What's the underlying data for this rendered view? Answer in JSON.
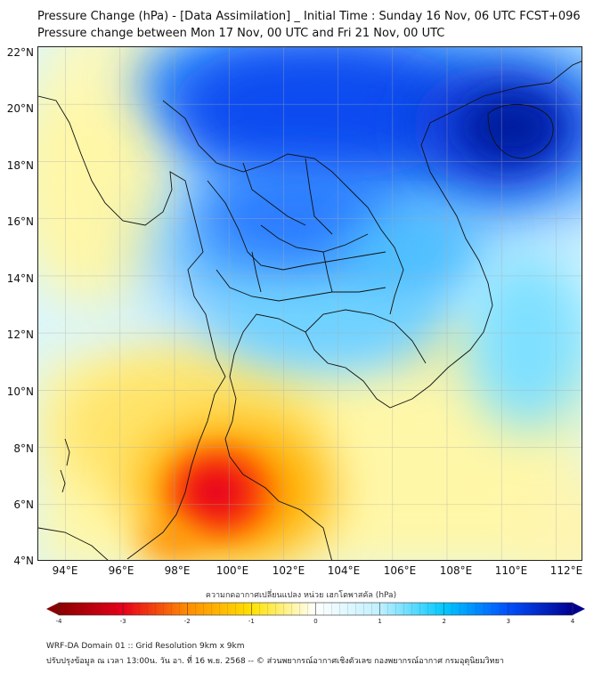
{
  "title": {
    "line1": "Pressure Change (hPa) - [Data Assimilation] _ Initial Time : Sunday 16 Nov, 06 UTC FCST+096",
    "line2": "Pressure change between Mon 17 Nov, 00 UTC and Fri 21 Nov, 00 UTC"
  },
  "map": {
    "lat_range": [
      4,
      22
    ],
    "lon_range": [
      93,
      113
    ],
    "lat_ticks": [
      "22°N",
      "20°N",
      "18°N",
      "16°N",
      "14°N",
      "12°N",
      "10°N",
      "8°N",
      "6°N",
      "4°N"
    ],
    "lon_ticks": [
      "94°E",
      "96°E",
      "98°E",
      "100°E",
      "102°E",
      "104°E",
      "106°E",
      "108°E",
      "110°E",
      "112°E"
    ],
    "grid": true
  },
  "colorbar": {
    "title": "ความกดอากาศเปลี่ยนแปลง หน่วย เฮกโตพาสคัล (hPa)",
    "ticks": [
      "-4",
      "-3",
      "-2",
      "-1",
      "0",
      "1",
      "2",
      "3",
      "4"
    ],
    "range": [
      -4,
      4
    ],
    "colors": {
      "neg4": "#8b0000",
      "neg3": "#e8001a",
      "neg2": "#ff8c00",
      "neg1": "#ffe100",
      "zero": "#ffffff",
      "pos1": "#bff0ff",
      "pos2": "#00c8ff",
      "pos3": "#0050ff",
      "pos4": "#000090"
    }
  },
  "footer": {
    "line1": "WRF-DA Domain 01 :: Grid Resolution 9km x 9km",
    "line2": "ปรับปรุงข้อมูล ณ เวลา 13:00น. วัน อา. ที่ 16 พ.ย. 2568 -- © ส่วนพยากรณ์อากาศเชิงตัวเลข กองพยากรณ์อากาศ กรมอุตุนิยมวิทยา"
  }
}
